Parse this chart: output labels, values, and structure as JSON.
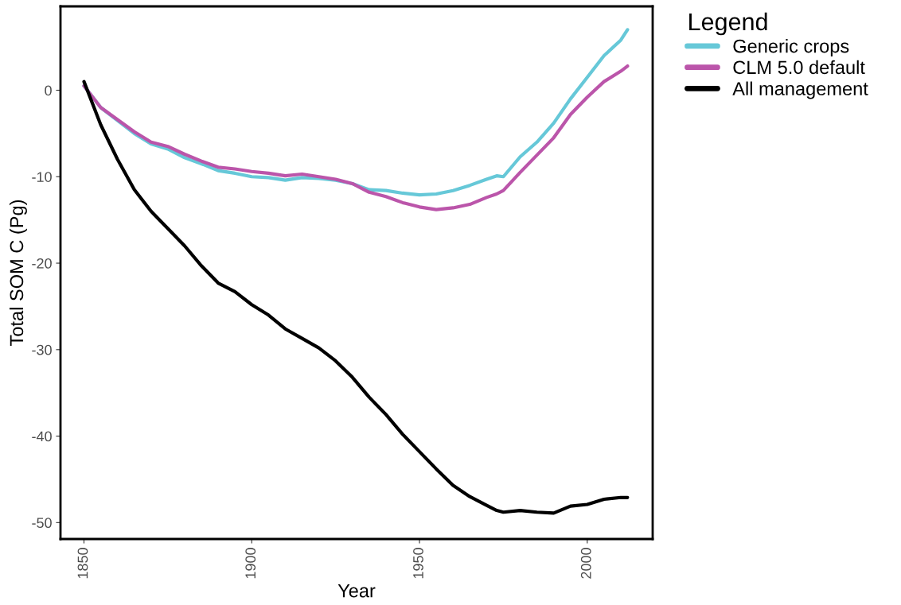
{
  "chart_data": {
    "type": "line",
    "xlabel": "Year",
    "ylabel": "Total SOM C (Pg)",
    "legend_title": "Legend",
    "legend": "right",
    "grid": false,
    "xlim": [
      1843,
      2019.5
    ],
    "ylim": [
      -51.9,
      9.7
    ],
    "xticks": [
      1850,
      1900,
      1950,
      2000
    ],
    "yticks": [
      0,
      -10,
      -20,
      -30,
      -40,
      -50
    ],
    "x": [
      1850,
      1855,
      1860,
      1865,
      1870,
      1875,
      1880,
      1885,
      1890,
      1895,
      1900,
      1905,
      1910,
      1915,
      1920,
      1925,
      1930,
      1935,
      1940,
      1945,
      1950,
      1955,
      1960,
      1965,
      1970,
      1973,
      1975,
      1980,
      1985,
      1990,
      1995,
      2000,
      2005,
      2010,
      2012
    ],
    "series": [
      {
        "name": "Generic crops",
        "color": "#66c8d8",
        "values": [
          0.5,
          -2,
          -3.5,
          -5,
          -6.2,
          -6.8,
          -7.8,
          -8.5,
          -9.3,
          -9.6,
          -10,
          -10.1,
          -10.4,
          -10.1,
          -10.2,
          -10.4,
          -10.8,
          -11.5,
          -11.6,
          -11.9,
          -12.1,
          -12,
          -11.6,
          -11,
          -10.3,
          -9.9,
          -10,
          -7.7,
          -6,
          -3.8,
          -1,
          1.5,
          4,
          5.8,
          7
        ]
      },
      {
        "name": "CLM 5.0 default",
        "color": "#bb55aa",
        "values": [
          0.5,
          -2,
          -3.4,
          -4.8,
          -6,
          -6.5,
          -7.4,
          -8.2,
          -8.9,
          -9.1,
          -9.4,
          -9.6,
          -9.9,
          -9.7,
          -10,
          -10.3,
          -10.8,
          -11.8,
          -12.3,
          -13,
          -13.5,
          -13.8,
          -13.6,
          -13.2,
          -12.4,
          -12,
          -11.6,
          -9.5,
          -7.5,
          -5.5,
          -2.8,
          -0.8,
          1,
          2.2,
          2.8
        ]
      },
      {
        "name": "All management",
        "color": "#000000",
        "values": [
          1,
          -4,
          -8,
          -11.5,
          -14,
          -16,
          -18,
          -20.3,
          -22.3,
          -23.3,
          -24.8,
          -26,
          -27.6,
          -28.7,
          -29.8,
          -31.3,
          -33.2,
          -35.5,
          -37.5,
          -39.8,
          -41.8,
          -43.8,
          -45.7,
          -47,
          -48,
          -48.6,
          -48.8,
          -48.6,
          -48.8,
          -48.9,
          -48.1,
          -47.9,
          -47.3,
          -47.1,
          -47.1
        ]
      }
    ]
  }
}
